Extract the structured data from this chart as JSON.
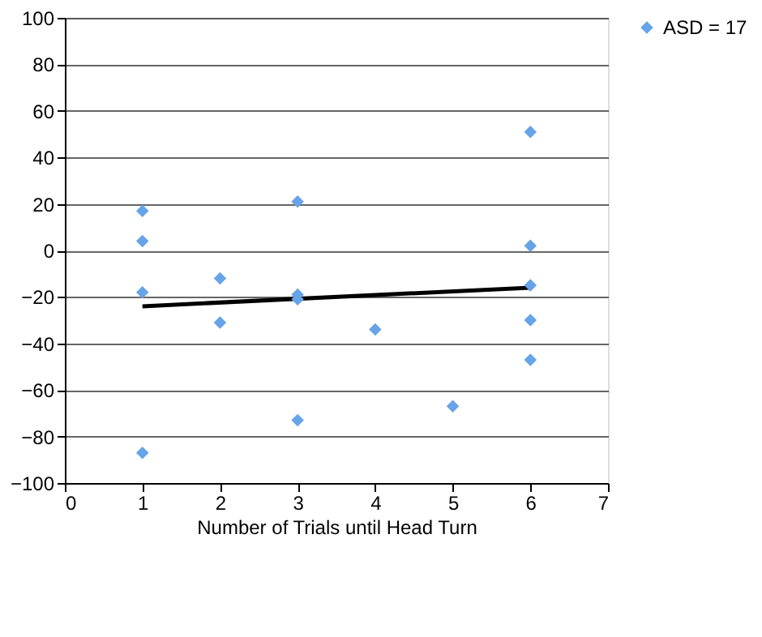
{
  "chart_data": {
    "type": "scatter",
    "xlabel": "Number of Trials until Head Turn",
    "xlim": [
      0,
      7
    ],
    "xticks": [
      0,
      1,
      2,
      3,
      4,
      5,
      6,
      7
    ],
    "ylim": [
      -100,
      100
    ],
    "yticks": [
      -100,
      -80,
      -60,
      -40,
      -20,
      0,
      20,
      40,
      60,
      80,
      100
    ],
    "grid": "y",
    "legend": "right",
    "series": [
      {
        "name": "ASD = 17",
        "color": "#66a3e8",
        "marker": "diamond",
        "x": [
          1,
          1,
          1,
          1,
          2,
          2,
          3,
          3,
          3,
          3,
          4,
          5,
          6,
          6,
          6,
          6,
          6
        ],
        "values": [
          17,
          4,
          -18,
          -87,
          -12,
          -31,
          21,
          -19,
          -21,
          -73,
          -34,
          -67,
          51,
          2,
          -15,
          -30,
          -47
        ]
      },
      {
        "type": "line",
        "color": "#000000",
        "x": [
          1,
          6
        ],
        "values": [
          -24,
          -16
        ],
        "line_style": "solid",
        "marker": "none"
      }
    ]
  }
}
